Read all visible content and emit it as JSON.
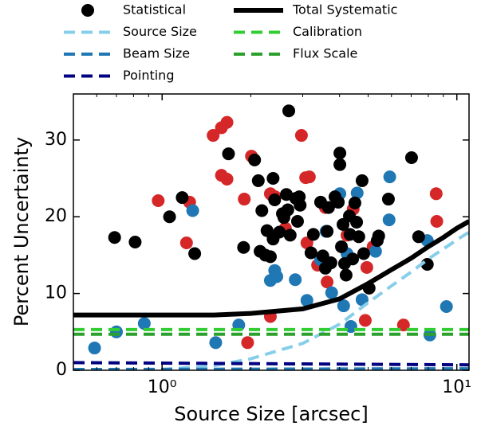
{
  "chart_data": {
    "type": "scatter",
    "xlabel": "Source Size [arcsec]",
    "ylabel": "Percent Uncertainty",
    "xscale": "log",
    "xlim": [
      0.5,
      11
    ],
    "ylim": [
      0,
      36
    ],
    "xticks": [
      {
        "value": 1,
        "label": "10⁰"
      },
      {
        "value": 10,
        "label": "10¹"
      }
    ],
    "xminorticks": [
      0.6,
      0.7,
      0.8,
      0.9,
      2,
      3,
      4,
      5,
      6,
      7,
      8,
      9
    ],
    "yticks": [
      0,
      10,
      20,
      30
    ],
    "series": [
      {
        "type": "scatter",
        "color": "#d62728",
        "x": [
          0.97,
          1.24,
          1.21,
          1.49,
          1.59,
          1.66,
          1.59,
          1.66,
          1.9,
          2.01,
          2.33,
          2.36,
          2.42,
          2.33,
          1.95,
          2.62,
          2.97,
          3.07,
          3.16,
          3.1,
          3.37,
          3.58,
          3.63,
          4.24,
          4.45,
          4.95,
          4.89,
          5.2,
          6.59,
          8.51,
          8.55
        ],
        "values": [
          22.1,
          21.9,
          16.6,
          30.6,
          31.6,
          32.3,
          25.4,
          24.9,
          22.3,
          27.9,
          23.0,
          22.8,
          22.6,
          7.0,
          3.6,
          18.5,
          30.6,
          25.1,
          25.2,
          16.6,
          13.7,
          21.2,
          11.5,
          17.6,
          21.0,
          13.4,
          6.5,
          16.1,
          5.9,
          23.0,
          19.4
        ]
      },
      {
        "type": "scatter",
        "color": "#1f77b4",
        "x": [
          0.59,
          0.7,
          0.87,
          1.27,
          1.52,
          1.82,
          2.41,
          2.33,
          2.45,
          2.83,
          3.1,
          3.45,
          3.6,
          3.76,
          4.01,
          4.13,
          4.24,
          4.37,
          4.59,
          4.77,
          5.3,
          5.89,
          5.92,
          7.94,
          8.1,
          9.22
        ],
        "values": [
          2.9,
          5.0,
          6.1,
          20.8,
          3.6,
          5.9,
          13.0,
          11.7,
          12.2,
          11.8,
          9.1,
          14.4,
          18.1,
          10.1,
          23.0,
          8.4,
          15.2,
          5.7,
          23.1,
          9.2,
          15.5,
          19.6,
          25.2,
          16.9,
          4.6,
          8.3
        ]
      },
      {
        "type": "scatter",
        "name": "Statistical",
        "color": "#000000",
        "x": [
          0.69,
          0.81,
          1.06,
          1.17,
          1.29,
          1.68,
          1.89,
          2.06,
          2.12,
          2.18,
          2.15,
          2.24,
          2.27,
          2.33,
          2.38,
          2.41,
          2.38,
          2.5,
          2.56,
          2.59,
          2.64,
          2.67,
          2.69,
          2.72,
          2.84,
          2.88,
          2.94,
          2.92,
          3.2,
          3.26,
          3.45,
          3.51,
          3.58,
          3.63,
          3.67,
          3.74,
          3.86,
          3.96,
          4.01,
          4.01,
          4.06,
          4.11,
          4.16,
          4.21,
          4.32,
          4.34,
          4.43,
          4.51,
          4.57,
          4.65,
          4.77,
          4.83,
          5.04,
          5.37,
          5.43,
          5.86,
          7.02,
          7.42,
          7.94
        ],
        "values": [
          17.3,
          16.7,
          20.0,
          22.5,
          15.2,
          28.2,
          16.0,
          27.4,
          24.7,
          20.8,
          15.5,
          15.0,
          18.2,
          14.8,
          25.0,
          22.2,
          17.1,
          18.0,
          20.4,
          19.9,
          22.9,
          20.9,
          33.8,
          17.6,
          22.4,
          19.4,
          21.5,
          22.6,
          15.3,
          17.7,
          21.9,
          14.9,
          13.3,
          18.1,
          21.2,
          14.0,
          22.6,
          21.9,
          28.3,
          26.8,
          16.1,
          19.0,
          13.9,
          12.4,
          20.1,
          17.7,
          14.5,
          21.8,
          19.3,
          17.4,
          24.7,
          15.2,
          10.7,
          16.9,
          17.5,
          22.3,
          27.7,
          17.4,
          13.8
        ]
      },
      {
        "type": "line",
        "name": "Source Size",
        "color": "#87ceeb",
        "linestyle": "dashed",
        "x": [
          0.5,
          0.7,
          1,
          1.5,
          2,
          3,
          4,
          5,
          6,
          7,
          8,
          9,
          10,
          11
        ],
        "values": [
          0,
          0,
          0.1,
          0.6,
          1.5,
          3.5,
          6.0,
          8.8,
          11.0,
          12.8,
          14.5,
          15.8,
          17.0,
          18.0
        ]
      },
      {
        "type": "line",
        "name": "Beam Size",
        "color": "#1f77b4",
        "linestyle": "dashed",
        "x": [
          0.5,
          11
        ],
        "values": [
          0.1,
          0.2
        ]
      },
      {
        "type": "line",
        "name": "Pointing",
        "color": "#000080",
        "linestyle": "dashed",
        "x": [
          0.5,
          11
        ],
        "values": [
          1.0,
          0.7
        ]
      },
      {
        "type": "line",
        "name": "Total Systematic",
        "color": "#000000",
        "linestyle": "solid",
        "x": [
          0.5,
          1,
          1.5,
          2,
          3,
          4,
          5,
          6,
          7,
          8,
          9,
          10,
          11
        ],
        "values": [
          7.2,
          7.2,
          7.2,
          7.4,
          8.0,
          9.3,
          11.3,
          13.1,
          14.6,
          16.1,
          17.3,
          18.5,
          19.4
        ]
      },
      {
        "type": "line",
        "name": "Calibration",
        "color": "#32cd32",
        "linestyle": "dashed",
        "x": [
          0.5,
          11
        ],
        "values": [
          5.3,
          5.3
        ]
      },
      {
        "type": "line",
        "name": "Flux Scale",
        "color": "#2ca02c",
        "linestyle": "dashed",
        "x": [
          0.5,
          11
        ],
        "values": [
          4.7,
          4.7
        ]
      }
    ]
  }
}
